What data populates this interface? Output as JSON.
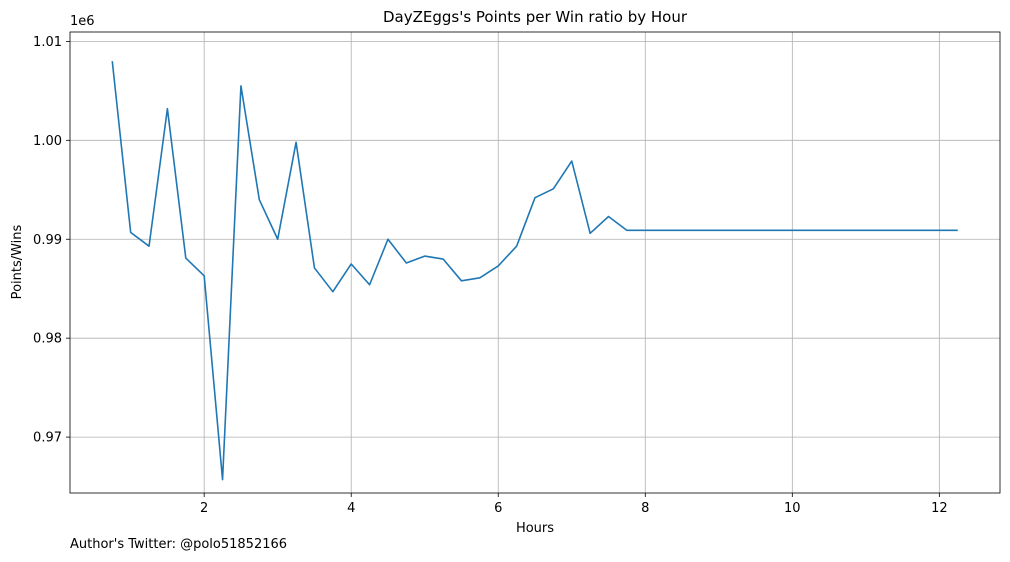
{
  "chart_data": {
    "type": "line",
    "title": "DayZEggs's Points per Win ratio by Hour",
    "xlabel": "Hours",
    "ylabel": "Points/Wins",
    "y_offset_label": "1e6",
    "xlim": [
      0.175,
      12.825
    ],
    "ylim": [
      964350,
      1010950
    ],
    "x_ticks": [
      2,
      4,
      6,
      8,
      10,
      12
    ],
    "y_ticks": [
      970000,
      980000,
      990000,
      1000000,
      1010000
    ],
    "x_tick_labels": [
      "2",
      "4",
      "6",
      "8",
      "10",
      "12"
    ],
    "y_tick_labels": [
      "0.97",
      "0.98",
      "0.99",
      "1.00",
      "1.01"
    ],
    "grid": true,
    "line_color": "#1f77b4",
    "series": [
      {
        "x": [
          0.75,
          1.0,
          1.25,
          1.5,
          1.75,
          2.0,
          2.25,
          2.5,
          2.75,
          3.0,
          3.25,
          3.5,
          3.75,
          4.0,
          4.25,
          4.5,
          4.75,
          5.0,
          5.25,
          5.5,
          5.75,
          6.0,
          6.25,
          6.5,
          6.75,
          7.0,
          7.25,
          7.5,
          7.75,
          8.0,
          8.25,
          8.5,
          8.75,
          9.0,
          9.25,
          9.5,
          9.75,
          10.0,
          10.25,
          10.5,
          10.75,
          11.0,
          11.25,
          11.5,
          11.75,
          12.0,
          12.25
        ],
        "values": [
          1008000,
          990700,
          989300,
          1003200,
          988100,
          986300,
          965700,
          1005500,
          994000,
          990000,
          999800,
          987100,
          984700,
          987500,
          985400,
          990000,
          987600,
          988300,
          988000,
          985800,
          986100,
          987300,
          989300,
          994200,
          995100,
          997900,
          990600,
          992300,
          990900,
          990900,
          990900,
          990900,
          990900,
          990900,
          990900,
          990900,
          990900,
          990900,
          990900,
          990900,
          990900,
          990900,
          990900,
          990900,
          990900,
          990900,
          990900
        ]
      }
    ]
  },
  "footer": {
    "text": "Author's Twitter: @polo51852166"
  }
}
